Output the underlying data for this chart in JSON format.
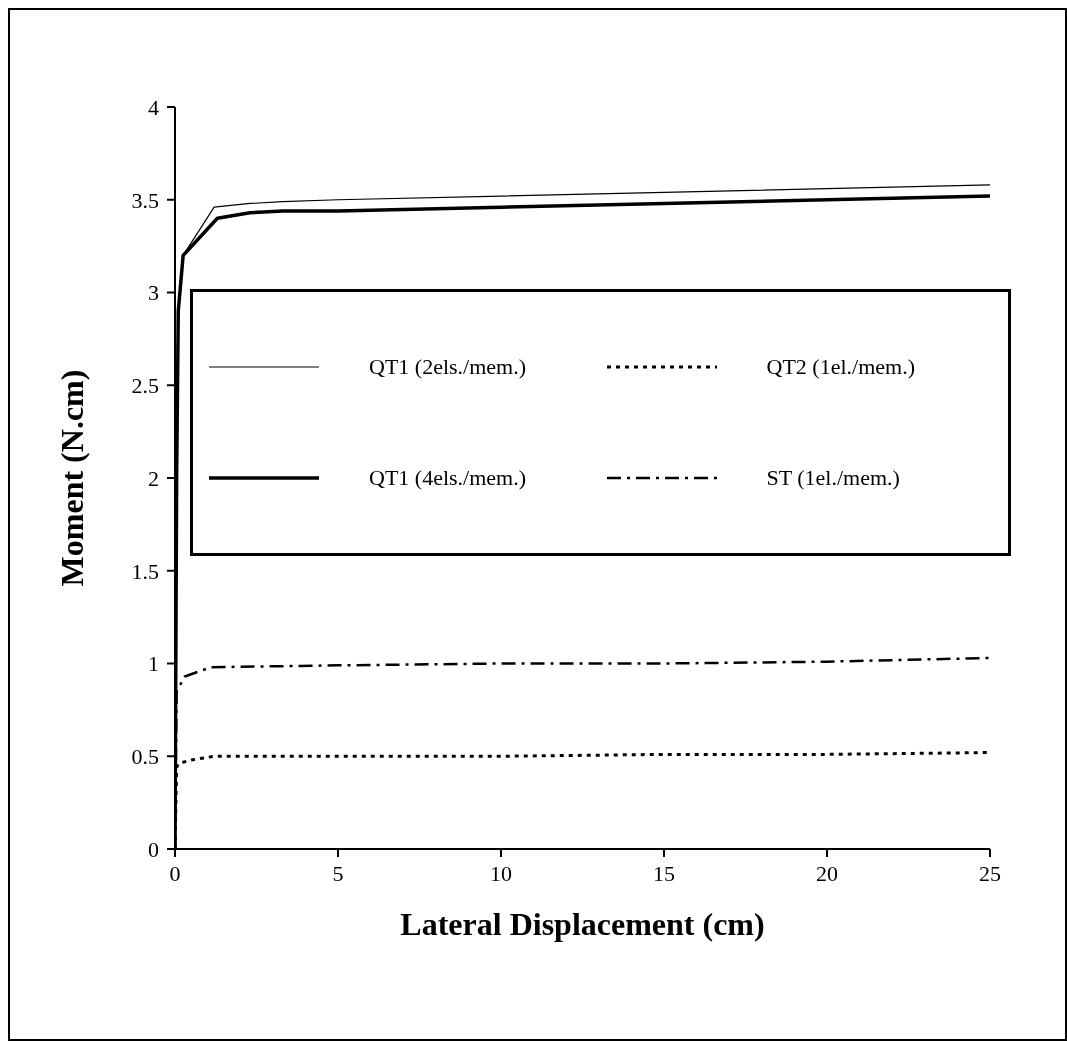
{
  "chart_data": {
    "type": "line",
    "xlabel": "Lateral Displacement (cm)",
    "ylabel": "Moment (N.cm)",
    "xlim": [
      0,
      25
    ],
    "xticks": [
      0,
      5,
      10,
      15,
      20,
      25
    ],
    "ylim": [
      0,
      4
    ],
    "yticks": [
      0,
      0.5,
      1,
      1.5,
      2,
      2.5,
      3,
      3.5,
      4
    ],
    "grid": false,
    "legend": "right",
    "marker": "none",
    "series": [
      {
        "name": "QT1 (2els./mem.)",
        "color": "#000000",
        "line_style": "solid",
        "x": [
          0,
          0.05,
          0.1,
          0.25,
          1.2,
          2.3,
          3.3,
          5,
          10,
          15,
          20,
          25
        ],
        "values": [
          0,
          2.0,
          2.9,
          3.2,
          3.46,
          3.48,
          3.49,
          3.5,
          3.52,
          3.54,
          3.56,
          3.58
        ]
      },
      {
        "name": "QT1 (4els./mem.)",
        "color": "#000000",
        "line_style": "solid",
        "x": [
          0,
          0.05,
          0.1,
          0.25,
          1.3,
          2.3,
          3.3,
          5,
          10,
          15,
          20,
          25
        ],
        "values": [
          0,
          2.0,
          2.9,
          3.2,
          3.4,
          3.43,
          3.44,
          3.44,
          3.46,
          3.48,
          3.5,
          3.52
        ]
      },
      {
        "name": "QT2 (1el./mem.)",
        "color": "#000000",
        "line_style": "dotted",
        "x": [
          0,
          0.05,
          0.1,
          0.5,
          1.2,
          5,
          10,
          15,
          20,
          25
        ],
        "values": [
          0,
          0.44,
          0.46,
          0.48,
          0.5,
          0.5,
          0.5,
          0.51,
          0.51,
          0.52
        ]
      },
      {
        "name": "ST (1el./mem.)",
        "color": "#000000",
        "line_style": "dashed",
        "x": [
          0,
          0.05,
          0.3,
          1.1,
          5,
          10,
          15,
          20,
          25
        ],
        "values": [
          0,
          0.85,
          0.93,
          0.98,
          0.99,
          1.0,
          1.0,
          1.01,
          1.03
        ]
      }
    ]
  }
}
